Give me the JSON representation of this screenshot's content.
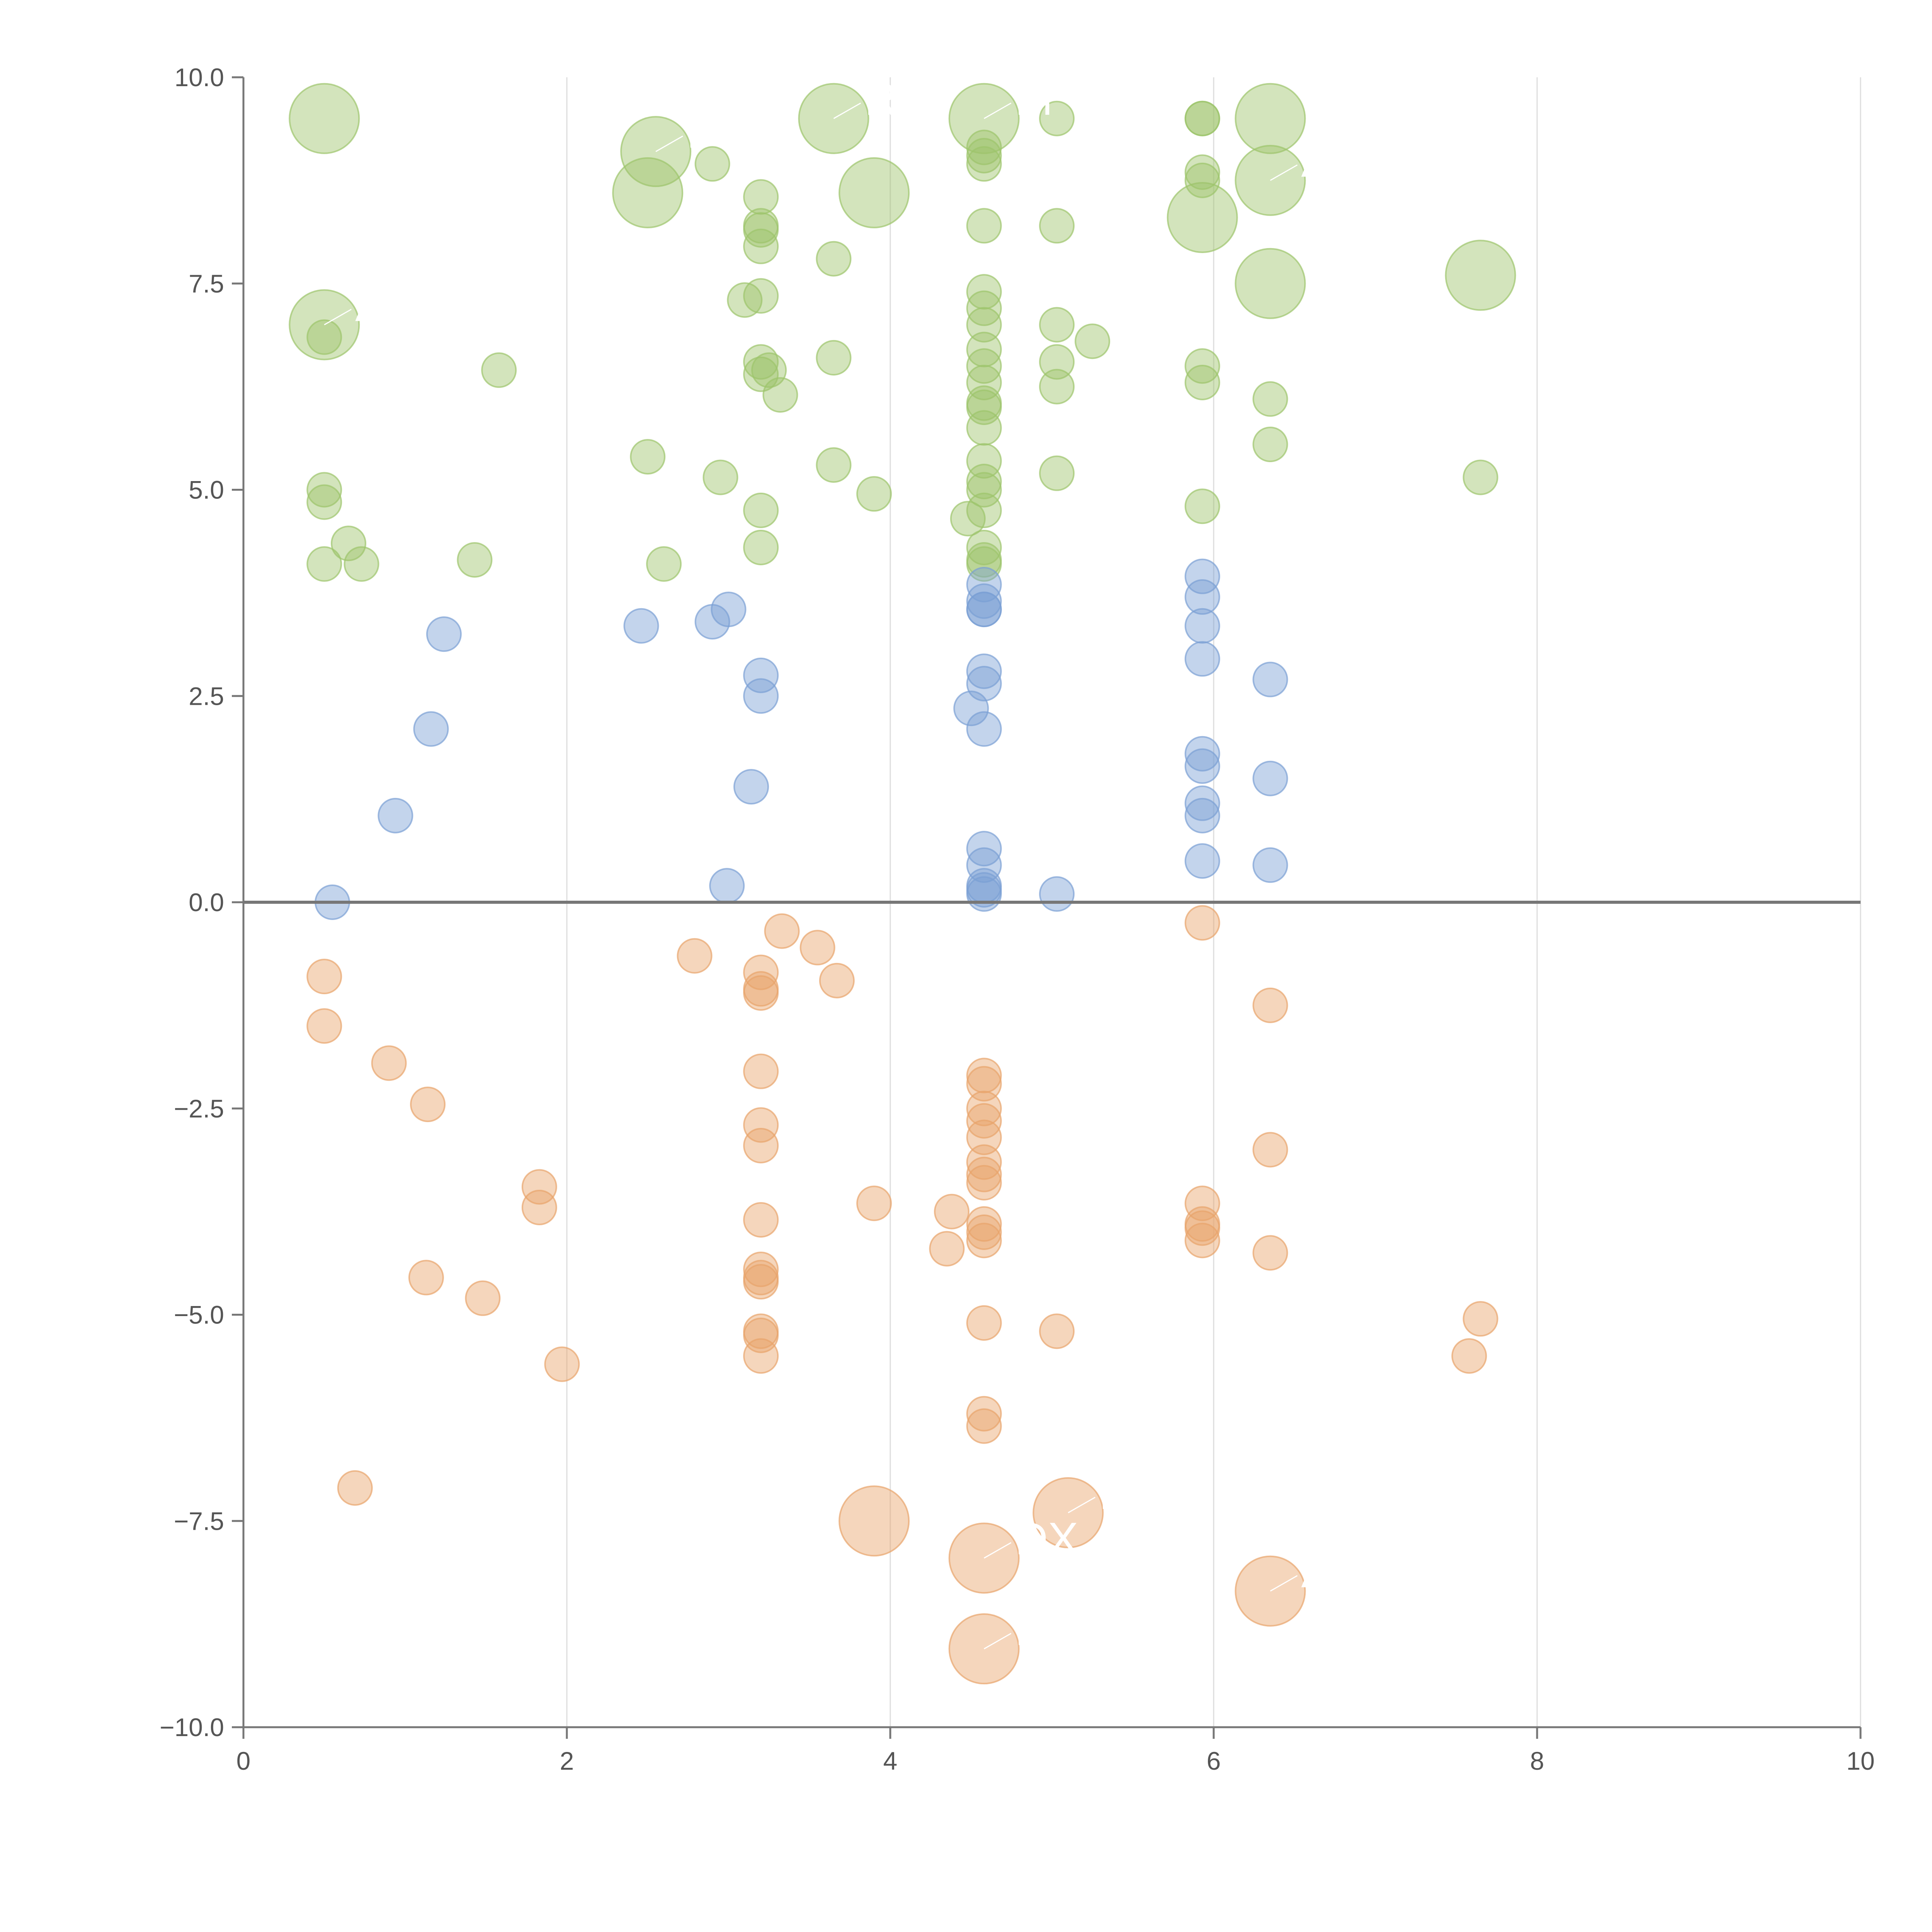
{
  "chart_data": {
    "type": "scatter",
    "title": "",
    "xlabel": "",
    "ylabel": "",
    "xlim": [
      0,
      10
    ],
    "ylim": [
      -10,
      10
    ],
    "x_ticks": [
      0,
      2,
      4,
      6,
      8,
      10
    ],
    "x_tick_labels": [
      "0",
      "2",
      "4",
      "6",
      "8",
      "10"
    ],
    "y_ticks": [
      -10,
      -7.5,
      -5,
      -2.5,
      0,
      2.5,
      5,
      7.5,
      10
    ],
    "y_tick_labels": [
      "−10.0",
      "−7.5",
      "−5.0",
      "−2.5",
      "0.0",
      "2.5",
      "5.0",
      "7.5",
      "10.0"
    ],
    "grid": "vertical",
    "zero_line": true,
    "series": [
      {
        "name": "green",
        "color": "#9dc46b",
        "points": [
          [
            0.5,
            9.5,
            2
          ],
          [
            2.55,
            9.1,
            2
          ],
          [
            3.65,
            9.5,
            2
          ],
          [
            4.58,
            9.5,
            2
          ],
          [
            6.35,
            9.5,
            2
          ],
          [
            0.5,
            7.0,
            2
          ],
          [
            2.5,
            8.6,
            2
          ],
          [
            3.9,
            8.6,
            2
          ],
          [
            5.93,
            8.3,
            2
          ],
          [
            6.35,
            8.75,
            2
          ],
          [
            6.35,
            7.5,
            2
          ],
          [
            7.65,
            7.6,
            2
          ],
          [
            2.9,
            8.95,
            1
          ],
          [
            3.2,
            8.55,
            1
          ],
          [
            3.2,
            8.2,
            1
          ],
          [
            3.2,
            8.15,
            1
          ],
          [
            3.2,
            7.95,
            1
          ],
          [
            3.1,
            7.3,
            1
          ],
          [
            3.2,
            7.35,
            1
          ],
          [
            3.65,
            7.8,
            1
          ],
          [
            1.58,
            6.45,
            1
          ],
          [
            3.2,
            6.55,
            1
          ],
          [
            3.2,
            6.4,
            1
          ],
          [
            3.25,
            6.45,
            1
          ],
          [
            3.32,
            6.15,
            1
          ],
          [
            3.65,
            6.6,
            1
          ],
          [
            0.5,
            6.85,
            1
          ],
          [
            2.5,
            5.4,
            1
          ],
          [
            2.95,
            5.15,
            1
          ],
          [
            3.65,
            5.3,
            1
          ],
          [
            3.9,
            4.95,
            1
          ],
          [
            0.5,
            5.0,
            1
          ],
          [
            0.5,
            4.85,
            1
          ],
          [
            0.65,
            4.35,
            1
          ],
          [
            0.5,
            4.1,
            1
          ],
          [
            0.73,
            4.1,
            1
          ],
          [
            1.43,
            4.15,
            1
          ],
          [
            2.6,
            4.1,
            1
          ],
          [
            3.2,
            4.75,
            1
          ],
          [
            3.2,
            4.3,
            1
          ],
          [
            4.58,
            9.15,
            1
          ],
          [
            4.58,
            9.05,
            1
          ],
          [
            4.58,
            8.95,
            1
          ],
          [
            4.58,
            8.2,
            1
          ],
          [
            4.58,
            7.4,
            1
          ],
          [
            4.58,
            7.2,
            1
          ],
          [
            4.58,
            7.0,
            1
          ],
          [
            4.58,
            6.7,
            1
          ],
          [
            4.58,
            6.5,
            1
          ],
          [
            4.58,
            6.3,
            1
          ],
          [
            4.58,
            6.05,
            1
          ],
          [
            4.58,
            6.0,
            1
          ],
          [
            4.58,
            5.75,
            1
          ],
          [
            4.58,
            5.35,
            1
          ],
          [
            4.58,
            5.1,
            1
          ],
          [
            4.58,
            5.0,
            1
          ],
          [
            4.58,
            4.75,
            1
          ],
          [
            4.48,
            4.65,
            1
          ],
          [
            4.58,
            4.3,
            1
          ],
          [
            4.58,
            4.15,
            1
          ],
          [
            4.58,
            4.1,
            1
          ],
          [
            5.03,
            9.5,
            1
          ],
          [
            5.03,
            8.2,
            1
          ],
          [
            5.03,
            7.0,
            1
          ],
          [
            5.03,
            6.55,
            1
          ],
          [
            5.03,
            6.25,
            1
          ],
          [
            5.25,
            6.8,
            1
          ],
          [
            5.03,
            5.2,
            1
          ],
          [
            5.93,
            9.5,
            1
          ],
          [
            5.93,
            9.5,
            1
          ],
          [
            5.93,
            8.85,
            1
          ],
          [
            5.93,
            8.75,
            1
          ],
          [
            5.93,
            6.5,
            1
          ],
          [
            5.93,
            6.3,
            1
          ],
          [
            5.93,
            4.8,
            1
          ],
          [
            6.35,
            6.1,
            1
          ],
          [
            6.35,
            5.55,
            1
          ],
          [
            7.65,
            5.15,
            1
          ]
        ]
      },
      {
        "name": "blue",
        "color": "#7aa0d4",
        "points": [
          [
            1.24,
            3.25,
            1
          ],
          [
            2.46,
            3.35,
            1
          ],
          [
            2.9,
            3.4,
            1
          ],
          [
            3.0,
            3.55,
            1
          ],
          [
            1.16,
            2.1,
            1
          ],
          [
            0.94,
            1.05,
            1
          ],
          [
            0.55,
            0.0,
            1
          ],
          [
            3.2,
            2.75,
            1
          ],
          [
            3.2,
            2.5,
            1
          ],
          [
            3.14,
            1.4,
            1
          ],
          [
            2.99,
            0.2,
            1
          ],
          [
            4.58,
            3.85,
            1
          ],
          [
            4.58,
            3.65,
            1
          ],
          [
            4.58,
            3.55,
            1
          ],
          [
            4.58,
            3.55,
            1
          ],
          [
            4.58,
            2.8,
            1
          ],
          [
            4.58,
            2.65,
            1
          ],
          [
            4.5,
            2.35,
            1
          ],
          [
            4.58,
            2.1,
            1
          ],
          [
            4.58,
            0.65,
            1
          ],
          [
            4.58,
            0.45,
            1
          ],
          [
            4.58,
            0.2,
            1
          ],
          [
            4.58,
            0.15,
            1
          ],
          [
            4.58,
            0.1,
            1
          ],
          [
            5.03,
            0.1,
            1
          ],
          [
            5.93,
            3.95,
            1
          ],
          [
            5.93,
            3.7,
            1
          ],
          [
            5.93,
            3.35,
            1
          ],
          [
            5.93,
            2.95,
            1
          ],
          [
            5.93,
            1.8,
            1
          ],
          [
            5.93,
            1.65,
            1
          ],
          [
            5.93,
            1.2,
            1
          ],
          [
            5.93,
            1.05,
            1
          ],
          [
            5.93,
            0.5,
            1
          ],
          [
            6.35,
            2.7,
            1
          ],
          [
            6.35,
            1.5,
            1
          ],
          [
            6.35,
            0.45,
            1
          ]
        ]
      },
      {
        "name": "orange",
        "color": "#e8a46b",
        "points": [
          [
            0.5,
            -0.9,
            1
          ],
          [
            0.5,
            -1.5,
            1
          ],
          [
            0.9,
            -1.95,
            1
          ],
          [
            1.14,
            -2.45,
            1
          ],
          [
            1.83,
            -3.45,
            1
          ],
          [
            1.83,
            -3.7,
            1
          ],
          [
            1.13,
            -4.55,
            1
          ],
          [
            1.48,
            -4.8,
            1
          ],
          [
            1.97,
            -5.6,
            1
          ],
          [
            0.69,
            -7.1,
            1
          ],
          [
            2.79,
            -0.65,
            1
          ],
          [
            3.2,
            -0.85,
            1
          ],
          [
            3.2,
            -1.05,
            1
          ],
          [
            3.2,
            -1.1,
            1
          ],
          [
            3.33,
            -0.35,
            1
          ],
          [
            3.55,
            -0.55,
            1
          ],
          [
            3.67,
            -0.95,
            1
          ],
          [
            3.2,
            -2.05,
            1
          ],
          [
            3.2,
            -2.7,
            1
          ],
          [
            3.2,
            -2.95,
            1
          ],
          [
            3.2,
            -3.85,
            1
          ],
          [
            3.2,
            -4.45,
            1
          ],
          [
            3.2,
            -4.55,
            1
          ],
          [
            3.2,
            -4.6,
            1
          ],
          [
            3.2,
            -5.2,
            1
          ],
          [
            3.2,
            -5.25,
            1
          ],
          [
            3.2,
            -5.5,
            1
          ],
          [
            3.9,
            -3.65,
            1
          ],
          [
            4.58,
            -2.1,
            1
          ],
          [
            4.58,
            -2.2,
            1
          ],
          [
            4.58,
            -2.5,
            1
          ],
          [
            4.58,
            -2.65,
            1
          ],
          [
            4.58,
            -2.85,
            1
          ],
          [
            4.58,
            -3.15,
            1
          ],
          [
            4.58,
            -3.3,
            1
          ],
          [
            4.58,
            -3.4,
            1
          ],
          [
            4.58,
            -3.9,
            1
          ],
          [
            4.58,
            -4.0,
            1
          ],
          [
            4.58,
            -4.1,
            1
          ],
          [
            4.38,
            -3.75,
            1
          ],
          [
            4.35,
            -4.2,
            1
          ],
          [
            4.58,
            -5.1,
            1
          ],
          [
            4.58,
            -6.2,
            1
          ],
          [
            4.58,
            -6.35,
            1
          ],
          [
            5.03,
            -5.2,
            1
          ],
          [
            5.93,
            -0.25,
            1
          ],
          [
            5.93,
            -3.65,
            1
          ],
          [
            5.93,
            -3.9,
            1
          ],
          [
            5.93,
            -3.95,
            1
          ],
          [
            5.93,
            -4.1,
            1
          ],
          [
            6.35,
            -1.25,
            1
          ],
          [
            6.35,
            -3.0,
            1
          ],
          [
            6.35,
            -4.25,
            1
          ],
          [
            7.65,
            -5.05,
            1
          ],
          [
            7.58,
            -5.5,
            1
          ],
          [
            3.9,
            -7.5,
            2
          ],
          [
            5.1,
            -7.4,
            2
          ],
          [
            4.58,
            -7.95,
            2
          ],
          [
            6.35,
            -8.35,
            2
          ],
          [
            4.58,
            -9.05,
            2
          ]
        ]
      }
    ],
    "annotations": [
      {
        "text": "AX",
        "x": 0.5,
        "y": 7.0
      },
      {
        "text": "DX",
        "x": 2.55,
        "y": 9.1
      },
      {
        "text": "R",
        "x": 3.65,
        "y": 9.5
      },
      {
        "text": "M",
        "x": 4.58,
        "y": 9.5
      },
      {
        "text": "A",
        "x": 6.35,
        "y": 8.75
      },
      {
        "text": "DX",
        "x": 4.58,
        "y": -7.95
      },
      {
        "text": "L",
        "x": 5.1,
        "y": -7.4
      },
      {
        "text": "A",
        "x": 6.35,
        "y": -8.35
      },
      {
        "text": "R",
        "x": 4.58,
        "y": -9.05
      }
    ]
  }
}
